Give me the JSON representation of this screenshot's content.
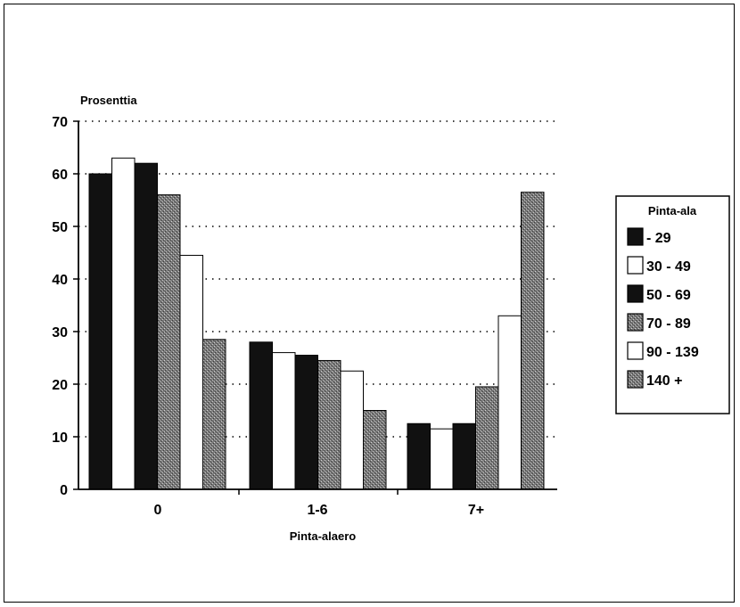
{
  "chart_data": {
    "type": "bar",
    "ylabel": "Prosenttia",
    "xlabel": "Pinta-alaero",
    "categories": [
      "0",
      "1-6",
      "7+"
    ],
    "ylim": [
      0,
      70
    ],
    "yticks": [
      0,
      10,
      20,
      30,
      40,
      50,
      60,
      70
    ],
    "grid": "dotted horizontal",
    "legend": {
      "title": "Pinta-ala",
      "placement": "right"
    },
    "series": [
      {
        "name": " - 29",
        "values": [
          60,
          28,
          12.5
        ],
        "color": "#111111",
        "pattern": "solid-dark"
      },
      {
        "name": "30 - 49",
        "values": [
          63,
          26,
          11.5
        ],
        "color": "#ffffff",
        "pattern": "white"
      },
      {
        "name": "50 - 69",
        "values": [
          62,
          25.5,
          12.5
        ],
        "color": "#111111",
        "pattern": "solid-dark"
      },
      {
        "name": "70 - 89",
        "values": [
          56,
          24.5,
          19.5
        ],
        "color": "#6a6a6a",
        "pattern": "stipple"
      },
      {
        "name": "90 - 139",
        "values": [
          44.5,
          22.5,
          33
        ],
        "color": "#ffffff",
        "pattern": "white"
      },
      {
        "name": "140 +",
        "values": [
          28.5,
          15,
          56.5
        ],
        "color": "#6a6a6a",
        "pattern": "stipple"
      }
    ]
  }
}
